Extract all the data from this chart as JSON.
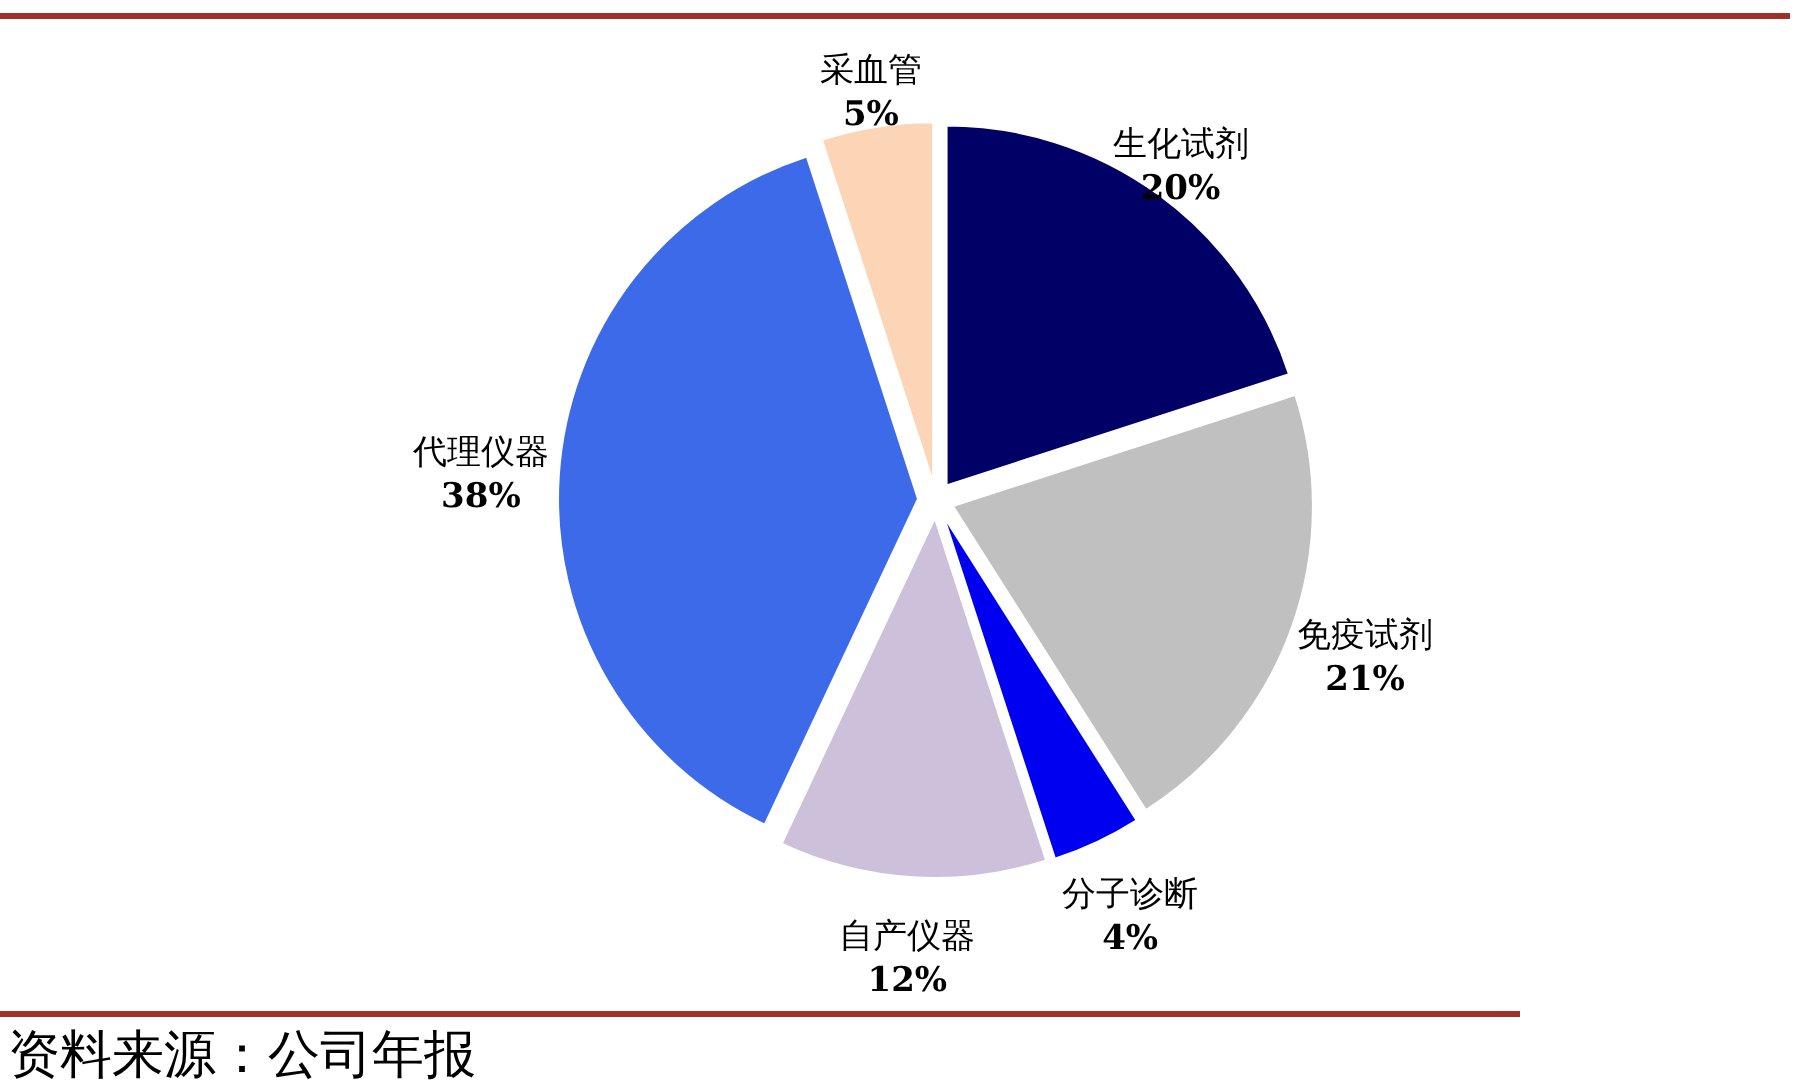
{
  "chart_data": {
    "type": "pie",
    "categories": [
      "生化试剂",
      "免疫试剂",
      "分子诊断",
      "自产仪器",
      "代理仪器",
      "采血管"
    ],
    "values": [
      20,
      21,
      4,
      12,
      38,
      5
    ],
    "value_labels": [
      "20%",
      "21%",
      "4%",
      "12%",
      "38%",
      "5%"
    ],
    "colors": [
      "#000066",
      "#c0c0c0",
      "#0000f0",
      "#ccc0da",
      "#3d6ae8",
      "#fbd5b5"
    ],
    "annotations": [
      "资料来源：公司年报"
    ]
  }
}
